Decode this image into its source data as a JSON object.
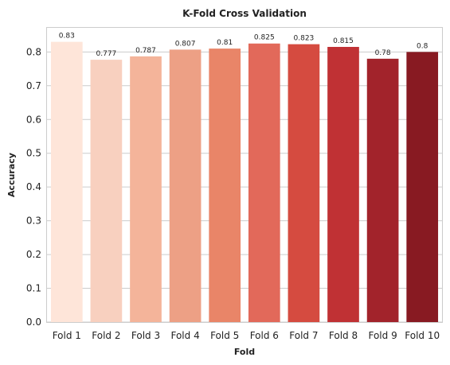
{
  "chart_data": {
    "type": "bar",
    "title": "K-Fold Cross Validation",
    "xlabel": "Fold",
    "ylabel": "Accuracy",
    "categories": [
      "Fold 1",
      "Fold 2",
      "Fold 3",
      "Fold 4",
      "Fold 5",
      "Fold 6",
      "Fold 7",
      "Fold 8",
      "Fold 9",
      "Fold 10"
    ],
    "values": [
      0.83,
      0.777,
      0.787,
      0.807,
      0.81,
      0.825,
      0.823,
      0.815,
      0.78,
      0.8
    ],
    "data_labels": [
      "0.83",
      "0.777",
      "0.787",
      "0.807",
      "0.81",
      "0.825",
      "0.823",
      "0.815",
      "0.78",
      "0.8"
    ],
    "yticks": [
      0.0,
      0.1,
      0.2,
      0.3,
      0.4,
      0.5,
      0.6,
      0.7,
      0.8
    ],
    "ytick_labels": [
      "0.0",
      "0.1",
      "0.2",
      "0.3",
      "0.4",
      "0.5",
      "0.6",
      "0.7",
      "0.8"
    ],
    "ylim": [
      0,
      0.8715
    ],
    "grid": "horizontal",
    "colors": [
      "#fee5d9",
      "#f8d0bf",
      "#f4b49a",
      "#eda085",
      "#e98568",
      "#e2695a",
      "#d54b40",
      "#c03134",
      "#a2232b",
      "#881a22"
    ]
  }
}
